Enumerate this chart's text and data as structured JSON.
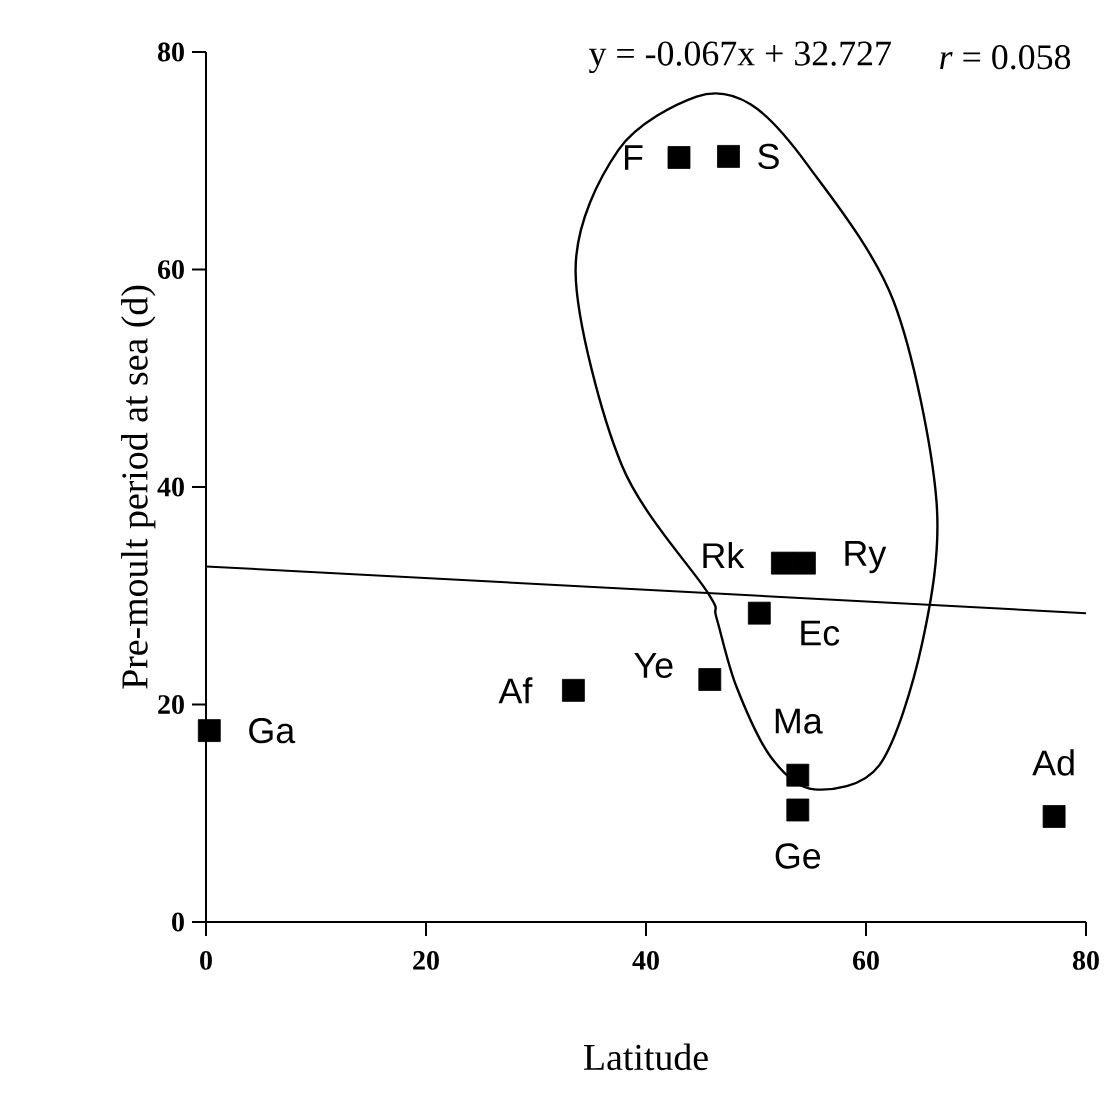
{
  "chart_data": {
    "type": "scatter",
    "xlabel": "Latitude",
    "ylabel": "Pre-moult period at sea (d)",
    "xlim": [
      0,
      80
    ],
    "ylim": [
      0,
      80
    ],
    "xticks": [
      0,
      20,
      40,
      60,
      80
    ],
    "yticks": [
      0,
      20,
      40,
      60,
      80
    ],
    "series": [
      {
        "color": "#000000",
        "marker": "square",
        "x": [
          43.0,
          47.5,
          52.4,
          54.4,
          50.3,
          45.8,
          33.4,
          0.3,
          53.8,
          53.8,
          77.1
        ],
        "values": [
          70.3,
          70.4,
          33.0,
          33.0,
          28.4,
          22.3,
          21.3,
          17.6,
          13.5,
          10.3,
          9.7
        ]
      },
      {
        "type": "line",
        "color": "#000000",
        "x": [
          0,
          80
        ],
        "values": [
          32.7,
          28.4
        ]
      }
    ],
    "annotations": [
      "y = -0.067x + 32.727",
      "*r* = 0.058",
      {
        "text": "F",
        "x": 43.0,
        "y": 70.3
      },
      {
        "text": "S",
        "x": 47.5,
        "y": 70.4
      },
      {
        "text": "Rk",
        "x": 52.4,
        "y": 33.0
      },
      {
        "text": "Ry",
        "x": 54.4,
        "y": 33.0
      },
      {
        "text": "Ec",
        "x": 50.3,
        "y": 28.4
      },
      {
        "text": "Ye",
        "x": 45.8,
        "y": 22.3
      },
      {
        "text": "Af",
        "x": 33.4,
        "y": 21.3
      },
      {
        "text": "Ga",
        "x": 0.3,
        "y": 17.6
      },
      {
        "text": "Ma",
        "x": 53.8,
        "y": 13.5
      },
      {
        "text": "Ge",
        "x": 53.8,
        "y": 10.3
      },
      {
        "text": "Ad",
        "x": 77.1,
        "y": 9.7
      }
    ]
  }
}
